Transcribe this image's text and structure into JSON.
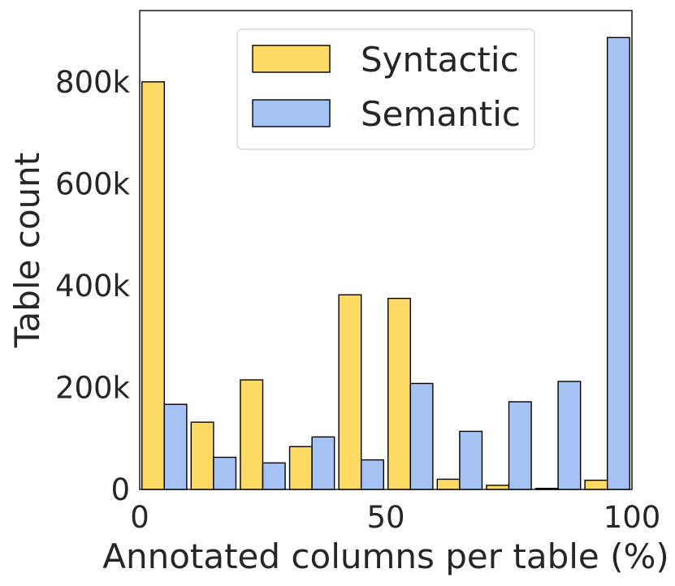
{
  "chart_data": {
    "type": "bar",
    "xlabel": "Annotated columns per table (%)",
    "ylabel": "Table count",
    "xlim": [
      0,
      100
    ],
    "ylim": [
      0,
      940000
    ],
    "bin_width": 10,
    "bins": [
      0,
      10,
      20,
      30,
      40,
      50,
      60,
      70,
      80,
      90
    ],
    "x_ticks": [
      0,
      50,
      100
    ],
    "x_tick_labels": [
      "0",
      "50",
      "100"
    ],
    "y_ticks": [
      0,
      200000,
      400000,
      600000,
      800000
    ],
    "y_tick_labels": [
      "0",
      "200k",
      "400k",
      "600k",
      "800k"
    ],
    "grid": false,
    "legend_position": "top-center",
    "series": [
      {
        "name": "Syntactic",
        "color": "#ffd966",
        "values": [
          800000,
          132000,
          215000,
          84000,
          382000,
          375000,
          20000,
          8000,
          2000,
          18000
        ]
      },
      {
        "name": "Semantic",
        "color": "#a4c2f4",
        "values": [
          167000,
          63000,
          52000,
          103000,
          58000,
          208000,
          114000,
          172000,
          212000,
          887000
        ]
      }
    ]
  }
}
